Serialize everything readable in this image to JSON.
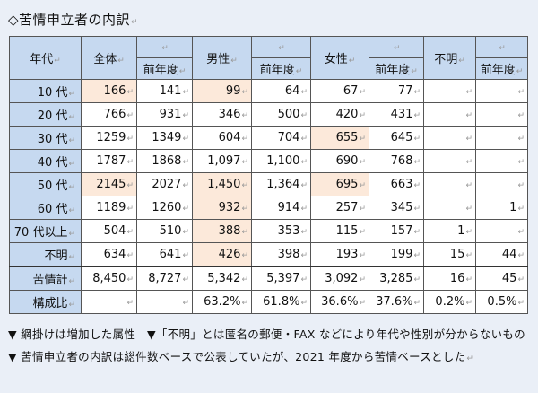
{
  "title": "◇苦情申立者の内訳",
  "header": {
    "age": "年代",
    "groups": [
      "全体",
      "男性",
      "女性",
      "不明"
    ],
    "prev_year": "前年度"
  },
  "rows": [
    {
      "label": "10 代",
      "values": [
        "166",
        "141",
        "99",
        "64",
        "67",
        "77",
        "",
        ""
      ],
      "increased": [
        true,
        false,
        true,
        false,
        false,
        false,
        false,
        false
      ]
    },
    {
      "label": "20 代",
      "values": [
        "766",
        "931",
        "346",
        "500",
        "420",
        "431",
        "",
        ""
      ],
      "increased": [
        false,
        false,
        false,
        false,
        false,
        false,
        false,
        false
      ]
    },
    {
      "label": "30 代",
      "values": [
        "1259",
        "1349",
        "604",
        "704",
        "655",
        "645",
        "",
        ""
      ],
      "increased": [
        false,
        false,
        false,
        false,
        true,
        false,
        false,
        false
      ]
    },
    {
      "label": "40 代",
      "values": [
        "1787",
        "1868",
        "1,097",
        "1,100",
        "690",
        "768",
        "",
        ""
      ],
      "increased": [
        false,
        false,
        false,
        false,
        false,
        false,
        false,
        false
      ]
    },
    {
      "label": "50 代",
      "values": [
        "2145",
        "2027",
        "1,450",
        "1,364",
        "695",
        "663",
        "",
        ""
      ],
      "increased": [
        true,
        false,
        true,
        false,
        true,
        false,
        false,
        false
      ]
    },
    {
      "label": "60 代",
      "values": [
        "1189",
        "1260",
        "932",
        "914",
        "257",
        "345",
        "",
        "1"
      ],
      "increased": [
        false,
        false,
        true,
        false,
        false,
        false,
        false,
        false
      ]
    },
    {
      "label": "70 代以上",
      "values": [
        "504",
        "510",
        "388",
        "353",
        "115",
        "157",
        "1",
        ""
      ],
      "increased": [
        false,
        false,
        true,
        false,
        false,
        false,
        false,
        false
      ]
    },
    {
      "label": "不明",
      "values": [
        "634",
        "641",
        "426",
        "398",
        "193",
        "199",
        "15",
        "44"
      ],
      "increased": [
        false,
        false,
        true,
        false,
        false,
        false,
        false,
        false
      ]
    }
  ],
  "totals": [
    {
      "label": "苦情計",
      "values": [
        "8,450",
        "8,727",
        "5,342",
        "5,397",
        "3,092",
        "3,285",
        "16",
        "45"
      ]
    },
    {
      "label": "構成比",
      "values": [
        "",
        "",
        "63.2%",
        "61.8%",
        "36.6%",
        "37.6%",
        "0.2%",
        "0.5%"
      ]
    }
  ],
  "notes": "▼ 網掛けは増加した属性　▼「不明」とは匿名の郵便・FAX などにより年代や性別が分からないもの　▼ 苦情申立者の内訳は総件数ベースで公表していたが、2021 年度から苦情ベースとした",
  "colors": {
    "header": "#c6d9f0",
    "highlight": "#fce9da",
    "background": "#eaeff7"
  }
}
